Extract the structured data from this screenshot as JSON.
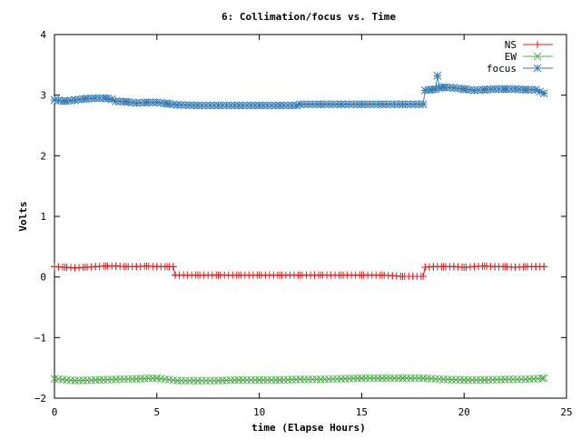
{
  "chart_data": {
    "type": "line",
    "title": "6: Collimation/focus vs. Time",
    "xlabel": "time (Elapse Hours)",
    "ylabel": "Volts",
    "xlim": [
      0,
      25
    ],
    "ylim": [
      -2,
      4
    ],
    "xticks": [
      0,
      5,
      10,
      15,
      20,
      25
    ],
    "yticks": [
      -2,
      -1,
      0,
      1,
      2,
      3,
      4
    ],
    "grid": false,
    "legend_position": "top-right",
    "marker_step_hours": 0.2,
    "series": [
      {
        "name": "NS",
        "color": "#e41a1c",
        "marker": "plus",
        "segments": [
          {
            "x": [
              0.0,
              0.5,
              1.0,
              1.5,
              2.0,
              2.5,
              3.0,
              3.5,
              4.0,
              4.5,
              5.0,
              5.5,
              5.8
            ],
            "y": [
              0.17,
              0.16,
              0.15,
              0.16,
              0.17,
              0.18,
              0.18,
              0.17,
              0.17,
              0.18,
              0.17,
              0.17,
              0.17
            ]
          },
          {
            "x": [
              5.9,
              7.0,
              8.0,
              9.0,
              10.0,
              11.0,
              12.0,
              13.0,
              14.0,
              15.0,
              16.0,
              16.5,
              17.0,
              17.5,
              18.0
            ],
            "y": [
              0.03,
              0.03,
              0.03,
              0.03,
              0.03,
              0.03,
              0.03,
              0.03,
              0.03,
              0.03,
              0.03,
              0.02,
              0.01,
              0.01,
              0.01
            ]
          },
          {
            "x": [
              18.1,
              18.5,
              19.0,
              19.5,
              20.0,
              20.5,
              21.0,
              21.5,
              22.0,
              22.5,
              23.0,
              23.5,
              23.9
            ],
            "y": [
              0.16,
              0.17,
              0.17,
              0.17,
              0.16,
              0.17,
              0.18,
              0.17,
              0.17,
              0.16,
              0.17,
              0.17,
              0.17
            ]
          }
        ]
      },
      {
        "name": "EW",
        "color": "#4daf4a",
        "marker": "cross",
        "segments": [
          {
            "x": [
              0.0,
              1.0,
              2.0,
              3.0,
              4.0,
              5.0,
              6.0,
              7.0,
              8.0,
              9.0,
              10.0,
              11.0,
              12.0,
              13.0,
              14.0,
              15.0,
              16.0,
              17.0,
              18.0,
              19.0,
              20.0,
              21.0,
              22.0,
              23.0,
              23.9
            ],
            "y": [
              -1.68,
              -1.71,
              -1.7,
              -1.69,
              -1.68,
              -1.67,
              -1.71,
              -1.71,
              -1.71,
              -1.7,
              -1.7,
              -1.7,
              -1.69,
              -1.69,
              -1.68,
              -1.67,
              -1.67,
              -1.67,
              -1.67,
              -1.69,
              -1.7,
              -1.7,
              -1.69,
              -1.69,
              -1.67
            ]
          }
        ]
      },
      {
        "name": "focus",
        "color": "#377eb8",
        "marker": "star",
        "segments": [
          {
            "x": [
              0.0,
              0.5,
              1.0,
              1.5,
              2.0,
              2.5,
              2.8,
              3.0,
              3.5,
              4.0,
              4.5,
              5.0,
              5.5,
              6.0,
              7.0,
              8.0,
              9.0,
              10.0,
              11.0,
              11.8,
              12.0,
              13.0,
              14.0,
              15.0,
              16.0,
              17.0,
              18.0
            ],
            "y": [
              2.92,
              2.9,
              2.92,
              2.94,
              2.95,
              2.95,
              2.93,
              2.9,
              2.89,
              2.87,
              2.88,
              2.88,
              2.86,
              2.84,
              2.83,
              2.83,
              2.83,
              2.83,
              2.83,
              2.83,
              2.85,
              2.85,
              2.85,
              2.85,
              2.85,
              2.85,
              2.85
            ]
          },
          {
            "x": [
              18.1,
              18.4,
              18.6,
              18.7,
              18.8,
              19.0,
              19.5,
              20.0,
              20.5,
              21.0,
              21.5,
              22.0,
              22.5,
              23.0,
              23.5,
              23.9
            ],
            "y": [
              3.08,
              3.09,
              3.1,
              3.32,
              3.12,
              3.13,
              3.12,
              3.1,
              3.08,
              3.09,
              3.1,
              3.1,
              3.1,
              3.09,
              3.09,
              3.03
            ]
          }
        ]
      }
    ]
  }
}
